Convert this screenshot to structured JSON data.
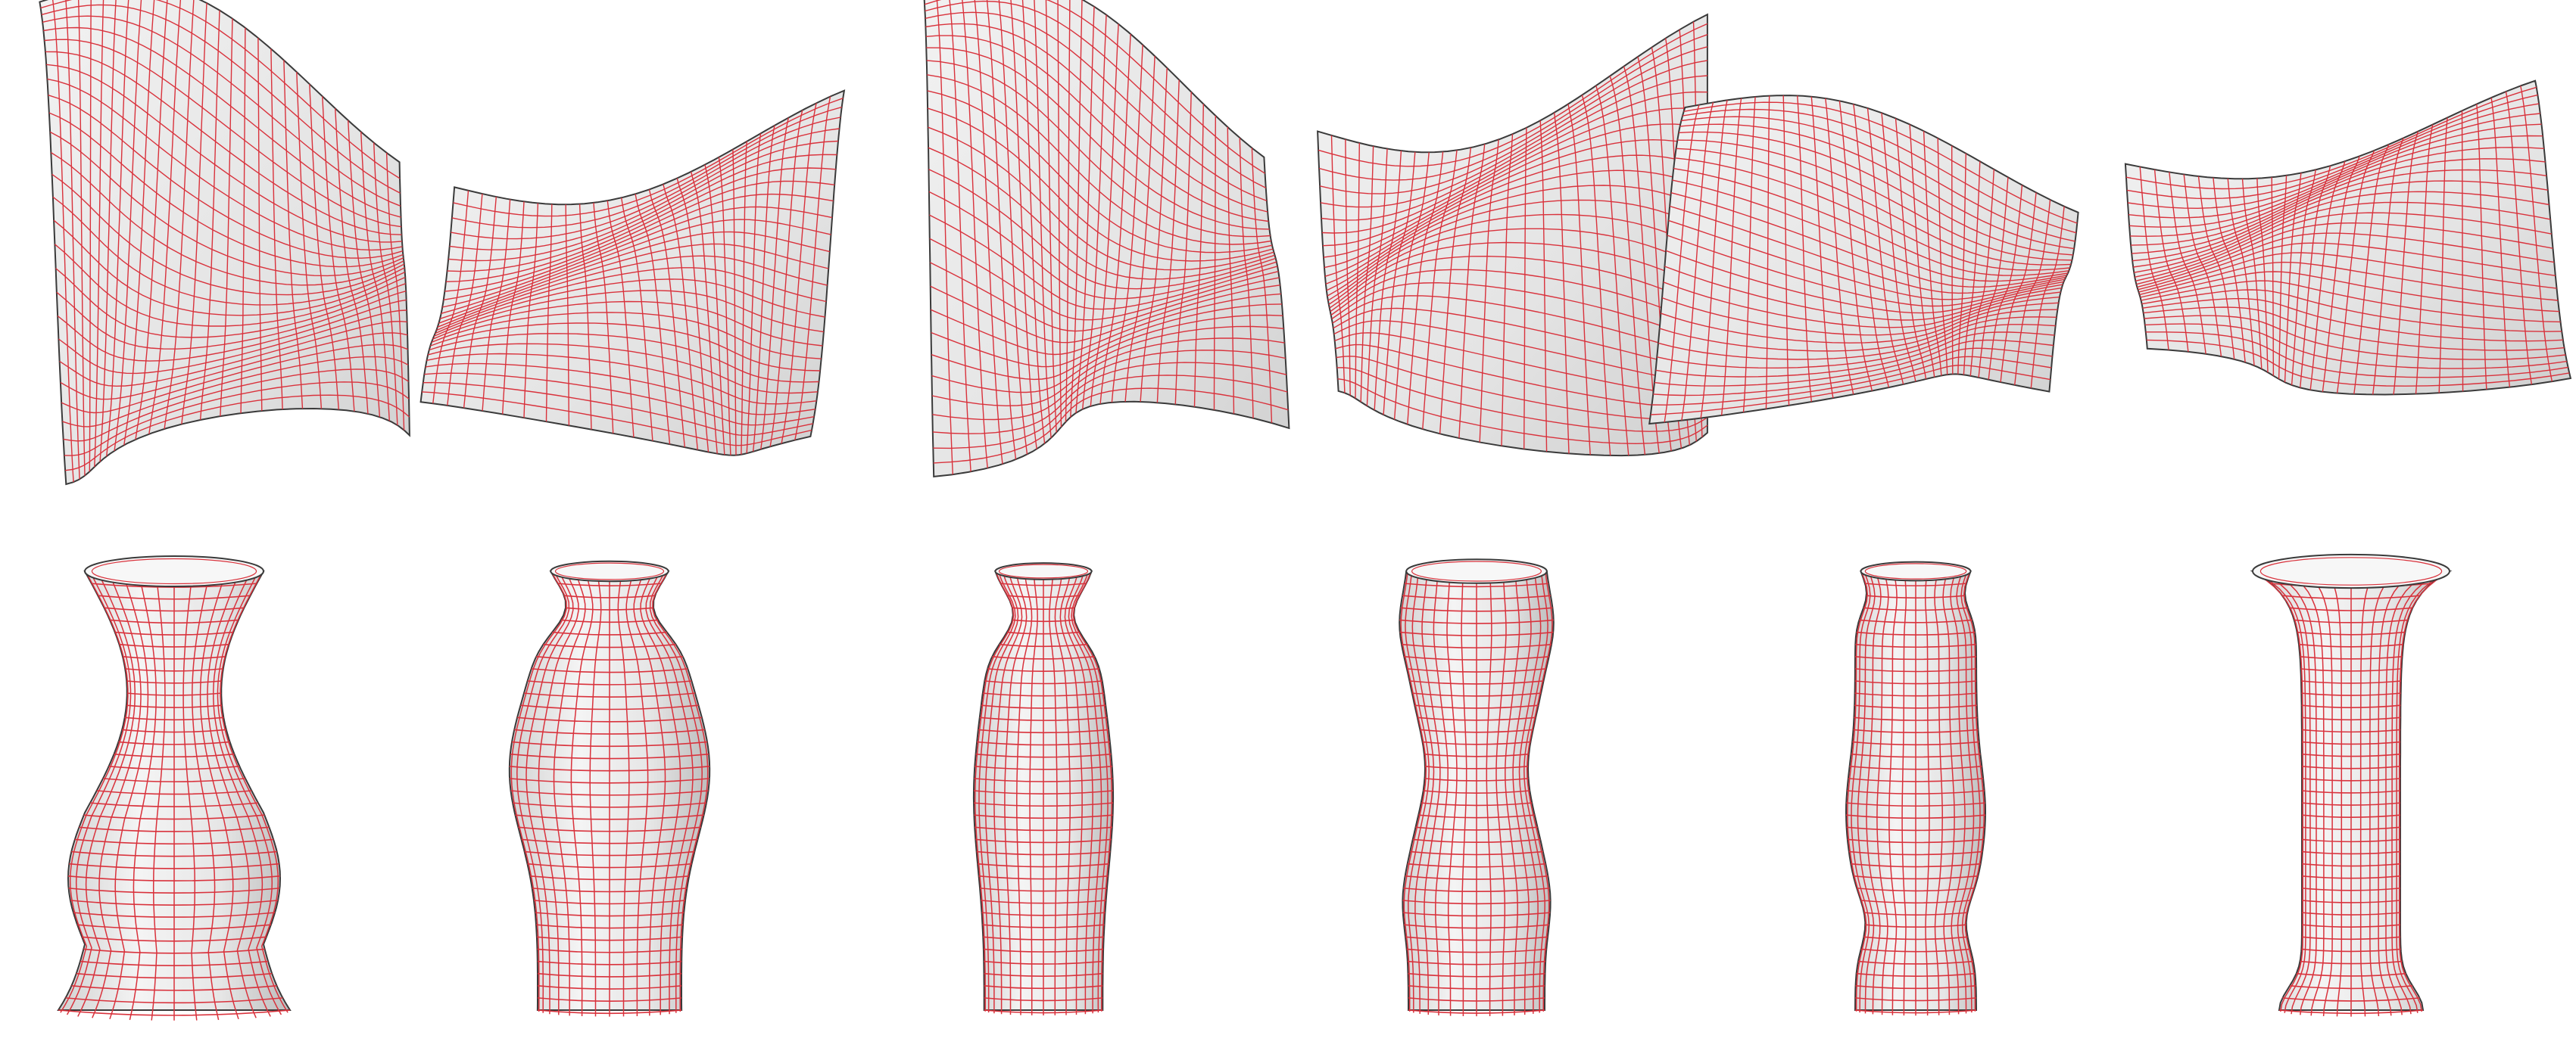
{
  "figure": {
    "rows": [
      {
        "id": "freeform-patches",
        "items": [
          {
            "name": "freeform-patch-1"
          },
          {
            "name": "freeform-patch-2"
          },
          {
            "name": "freeform-patch-3"
          },
          {
            "name": "freeform-patch-4"
          },
          {
            "name": "freeform-patch-5"
          },
          {
            "name": "freeform-patch-6"
          }
        ]
      },
      {
        "id": "vase-surfaces",
        "items": [
          {
            "name": "vase-1"
          },
          {
            "name": "vase-2"
          },
          {
            "name": "vase-3"
          },
          {
            "name": "vase-4"
          },
          {
            "name": "vase-5"
          },
          {
            "name": "vase-6"
          }
        ]
      }
    ],
    "colors": {
      "background": "#ffffff",
      "surface_fill": "#ededed",
      "surface_shade": "#cfcfcf",
      "grid_lines": "#d9323c",
      "outline": "#3a3a3a"
    }
  }
}
